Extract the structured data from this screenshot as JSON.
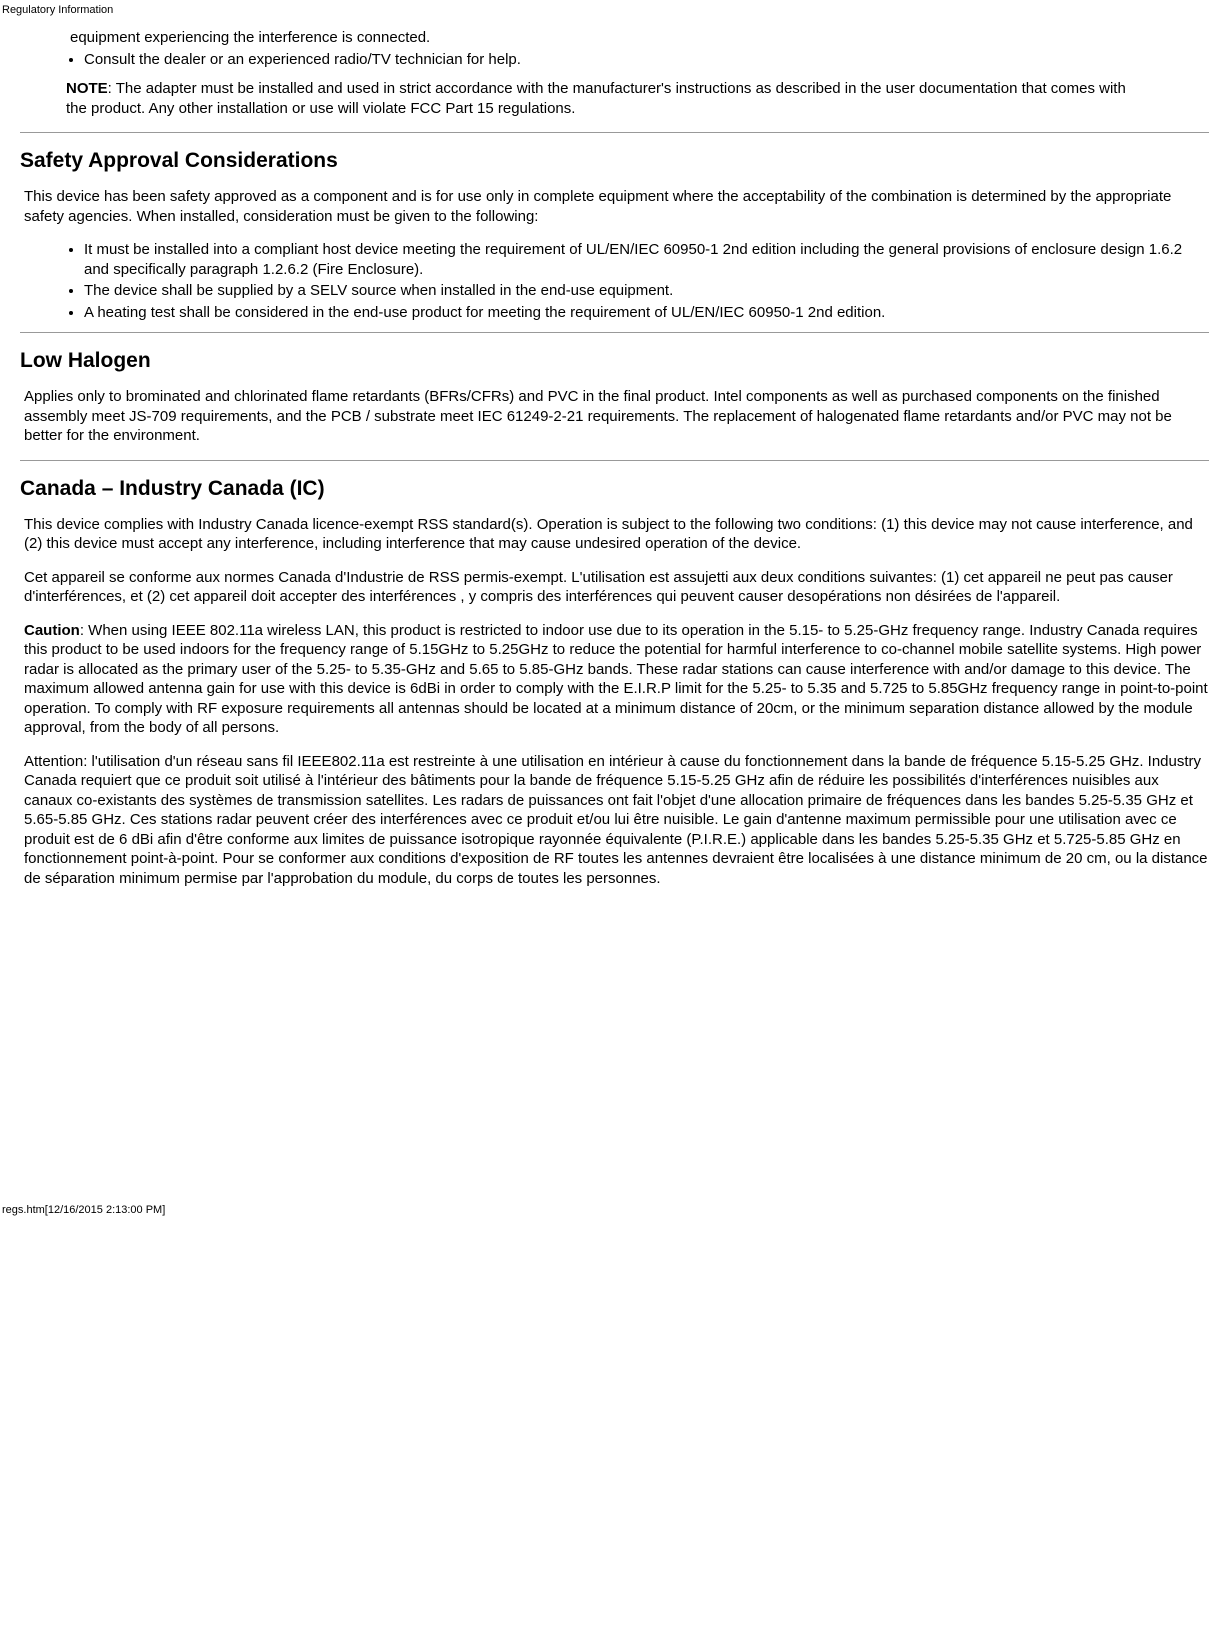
{
  "header_label": "Regulatory Information",
  "intro_list": {
    "item1a": " equipment experiencing the interference is connected.",
    "item2": "Consult the dealer or an experienced radio/TV technician for help."
  },
  "note": {
    "label": "NOTE",
    "text": ": The adapter must be installed and used in strict accordance with the manufacturer's instructions as described in the user documentation that comes with the product. Any other installation or use will violate FCC Part 15 regulations."
  },
  "safety": {
    "heading": "Safety Approval Considerations",
    "para": "This device has been safety approved as a component and is for use only in complete equipment where the acceptability of the combination is determined by the appropriate safety agencies. When installed, consideration must be given to the following:",
    "items": {
      "i1": "It must be installed into a compliant host device meeting the requirement of UL/EN/IEC 60950-1 2nd edition including the general provisions of enclosure design 1.6.2 and specifically paragraph 1.2.6.2 (Fire Enclosure).",
      "i2": "The device shall be supplied by a SELV source when installed in the end-use equipment.",
      "i3": "A heating test shall be considered in the end-use product for meeting the requirement of UL/EN/IEC 60950-1 2nd edition."
    }
  },
  "halogen": {
    "heading": "Low Halogen",
    "para": "Applies only to brominated and chlorinated flame retardants (BFRs/CFRs) and PVC in the final product. Intel components as well as purchased components on the finished assembly meet JS-709 requirements, and the PCB / substrate meet IEC 61249-2-21 requirements. The replacement of halogenated flame retardants and/or PVC may not be better for the environment."
  },
  "canada": {
    "heading": "Canada – Industry Canada (IC)",
    "p1": "This device complies with Industry Canada licence-exempt RSS standard(s). Operation is subject to the following two conditions: (1) this device may not cause interference, and (2) this device must accept any interference, including interference that may cause undesired operation of the device.",
    "p2": "Cet appareil se conforme aux normes Canada d'Industrie de RSS permis-exempt. L'utilisation est assujetti aux deux conditions suivantes: (1) cet appareil ne peut pas causer d'interférences, et (2) cet appareil doit accepter des interférences , y compris des interférences qui peuvent causer desopérations non désirées de l'appareil.",
    "caution_label": "Caution",
    "p3": ": When using IEEE 802.11a wireless LAN, this product is restricted to indoor use due to its operation in the 5.15- to 5.25-GHz frequency range. Industry Canada requires this product to be used indoors for the frequency range of 5.15GHz to 5.25GHz to reduce the potential for harmful interference to co-channel mobile satellite systems. High power radar is allocated as the primary user of the 5.25- to 5.35-GHz and 5.65 to 5.85-GHz bands. These radar stations can cause interference with and/or damage to this device. The maximum allowed antenna gain for use with this device is 6dBi in order to comply with the E.I.R.P limit for the 5.25- to 5.35 and 5.725 to 5.85GHz frequency range in point-to-point operation. To comply with RF exposure requirements all antennas should be located at a minimum distance of 20cm, or the minimum separation distance allowed by the module approval, from the body of all persons.",
    "p4": "Attention: l'utilisation d'un réseau sans fil IEEE802.11a est restreinte à une utilisation en intérieur à cause du fonctionnement dans la bande de fréquence 5.15-5.25 GHz. Industry Canada requiert que ce produit soit utilisé à l'intérieur des bâtiments pour la bande de fréquence 5.15-5.25 GHz afin de réduire les possibilités d'interférences nuisibles aux canaux co-existants des systèmes de transmission satellites. Les radars de puissances ont fait l'objet d'une allocation primaire de fréquences dans les bandes 5.25-5.35 GHz et 5.65-5.85 GHz. Ces stations radar peuvent créer des interférences avec ce produit et/ou lui être nuisible. Le gain d'antenne maximum permissible pour une utilisation avec ce produit est de 6 dBi afin d'être conforme aux limites de puissance isotropique rayonnée équivalente (P.I.R.E.) applicable dans les bandes 5.25-5.35 GHz et 5.725-5.85 GHz en fonctionnement point-à-point. Pour se conformer aux conditions d'exposition de RF toutes les antennes devraient être localisées à une distance minimum de 20 cm, ou la distance de séparation minimum permise par l'approbation du module, du corps de toutes les personnes."
  },
  "footer": "regs.htm[12/16/2015 2:13:00 PM]"
}
